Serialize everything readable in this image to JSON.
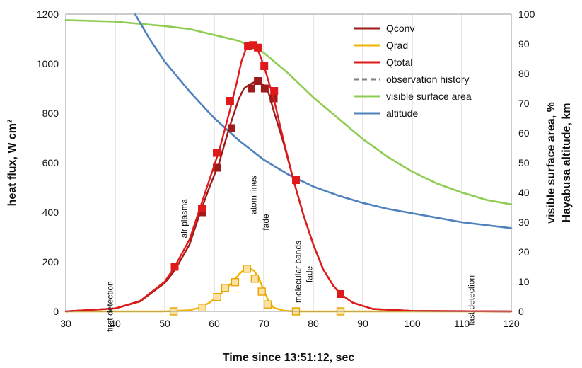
{
  "chart_data": {
    "type": "line",
    "xlabel": "Time since 13:51:12, sec",
    "ylabel_left": "heat flux, W cm²",
    "ylabel_right": "visible surface area, %",
    "ylabel_right2": "Hayabusa altitude, km",
    "xlim": [
      30,
      120
    ],
    "ylim_left": [
      0,
      1200
    ],
    "ylim_right": [
      0,
      100
    ],
    "x_ticks": [
      30,
      40,
      50,
      60,
      70,
      80,
      90,
      100,
      110,
      120
    ],
    "y_left_ticks": [
      0,
      200,
      400,
      600,
      800,
      1000,
      1200
    ],
    "y_right_ticks": [
      0,
      10,
      20,
      30,
      40,
      50,
      60,
      70,
      80,
      90,
      100
    ],
    "grid": "vertical",
    "legend_position": "top-right",
    "series": [
      {
        "name": "Qconv",
        "color": "#9e1b1b",
        "axis": "left",
        "style": "solid",
        "curve": [
          [
            30,
            0
          ],
          [
            40,
            12
          ],
          [
            45,
            40
          ],
          [
            50,
            115
          ],
          [
            52,
            165
          ],
          [
            55,
            270
          ],
          [
            57,
            390
          ],
          [
            59,
            500
          ],
          [
            61,
            600
          ],
          [
            63,
            740
          ],
          [
            65,
            860
          ],
          [
            66,
            900
          ],
          [
            67,
            915
          ],
          [
            68,
            925
          ],
          [
            69,
            925
          ],
          [
            70,
            915
          ],
          [
            71,
            880
          ],
          [
            72,
            810
          ],
          [
            74,
            680
          ],
          [
            76,
            530
          ],
          [
            78,
            390
          ],
          [
            80,
            270
          ],
          [
            82,
            170
          ],
          [
            84,
            105
          ],
          [
            85.5,
            70
          ],
          [
            88,
            35
          ],
          [
            92,
            10
          ],
          [
            100,
            2
          ],
          [
            120,
            0
          ]
        ],
        "markers": [
          [
            57.5,
            400
          ],
          [
            60.5,
            580
          ],
          [
            63.5,
            740
          ],
          [
            67.5,
            900
          ],
          [
            68.8,
            930
          ],
          [
            70.2,
            900
          ],
          [
            72,
            860
          ],
          [
            76.5,
            530
          ]
        ]
      },
      {
        "name": "Qrad",
        "color": "#f0b400",
        "axis": "left",
        "style": "solid",
        "curve": [
          [
            30,
            0
          ],
          [
            50,
            0
          ],
          [
            55,
            5
          ],
          [
            57,
            14
          ],
          [
            59,
            35
          ],
          [
            61,
            65
          ],
          [
            62.5,
            95
          ],
          [
            64,
            125
          ],
          [
            65,
            150
          ],
          [
            66,
            168
          ],
          [
            67,
            175
          ],
          [
            68,
            165
          ],
          [
            69,
            135
          ],
          [
            70,
            85
          ],
          [
            71,
            40
          ],
          [
            72,
            15
          ],
          [
            74,
            3
          ],
          [
            76,
            0
          ],
          [
            120,
            0
          ]
        ],
        "markers": [
          [
            51.8,
            0
          ],
          [
            57.6,
            15
          ],
          [
            60.6,
            58
          ],
          [
            62.2,
            95
          ],
          [
            64.2,
            118
          ],
          [
            66.6,
            172
          ],
          [
            68.2,
            132
          ],
          [
            69.6,
            80
          ],
          [
            70.8,
            28
          ],
          [
            76.5,
            0
          ],
          [
            85.5,
            0
          ]
        ]
      },
      {
        "name": "Qtotal",
        "color": "#e01a1a",
        "axis": "left",
        "style": "solid",
        "curve": [
          [
            30,
            0
          ],
          [
            40,
            12
          ],
          [
            45,
            42
          ],
          [
            50,
            120
          ],
          [
            52,
            180
          ],
          [
            55,
            290
          ],
          [
            57,
            410
          ],
          [
            59,
            530
          ],
          [
            61,
            650
          ],
          [
            63,
            800
          ],
          [
            64.5,
            920
          ],
          [
            65.5,
            1010
          ],
          [
            66.5,
            1065
          ],
          [
            67.5,
            1080
          ],
          [
            68.5,
            1070
          ],
          [
            69.5,
            1020
          ],
          [
            70.5,
            960
          ],
          [
            72,
            860
          ],
          [
            74,
            690
          ],
          [
            76,
            530
          ],
          [
            78,
            390
          ],
          [
            80,
            270
          ],
          [
            82,
            170
          ],
          [
            84,
            105
          ],
          [
            85.5,
            70
          ],
          [
            88,
            35
          ],
          [
            92,
            10
          ],
          [
            100,
            2
          ],
          [
            120,
            0
          ]
        ],
        "markers": [
          [
            52,
            180
          ],
          [
            57.5,
            415
          ],
          [
            60.5,
            640
          ],
          [
            63.2,
            850
          ],
          [
            66.8,
            1070
          ],
          [
            67.8,
            1075
          ],
          [
            68.8,
            1065
          ],
          [
            70.1,
            990
          ],
          [
            72.1,
            890
          ],
          [
            76.5,
            530
          ],
          [
            85.5,
            70
          ]
        ]
      },
      {
        "name": "observation history",
        "color": "#7f7f7f",
        "axis": "left",
        "style": "dashed",
        "curve": []
      },
      {
        "name": "visible surface area",
        "color": "#8fcc52",
        "axis": "right",
        "style": "solid",
        "curve": [
          [
            30,
            98
          ],
          [
            40,
            97.5
          ],
          [
            50,
            96
          ],
          [
            55,
            95
          ],
          [
            60,
            93
          ],
          [
            65,
            91
          ],
          [
            70,
            87
          ],
          [
            75,
            80
          ],
          [
            80,
            72
          ],
          [
            85,
            65
          ],
          [
            90,
            58
          ],
          [
            95,
            52
          ],
          [
            100,
            47
          ],
          [
            105,
            43
          ],
          [
            110,
            40
          ],
          [
            115,
            37.5
          ],
          [
            120,
            36
          ]
        ]
      },
      {
        "name": "altitude",
        "color": "#4e81bd",
        "axis": "right",
        "style": "solid",
        "curve": [
          [
            44,
            100
          ],
          [
            47,
            91.5
          ],
          [
            50,
            84
          ],
          [
            55,
            74
          ],
          [
            60,
            65
          ],
          [
            65,
            57.5
          ],
          [
            70,
            51
          ],
          [
            75,
            46
          ],
          [
            80,
            42
          ],
          [
            85,
            39
          ],
          [
            90,
            36.5
          ],
          [
            95,
            34.5
          ],
          [
            100,
            33
          ],
          [
            105,
            31.5
          ],
          [
            110,
            30
          ],
          [
            115,
            29
          ],
          [
            120,
            28
          ]
        ]
      }
    ],
    "annotations": [
      {
        "text": "first detection",
        "x": 39.5,
        "y": 20
      },
      {
        "text": "air plasma",
        "x": 54.5,
        "y": 375
      },
      {
        "text": "atom lines",
        "x": 68.5,
        "y": 470
      },
      {
        "text": "fade",
        "x": 71,
        "y": 360
      },
      {
        "text": "molecular bands",
        "x": 77.5,
        "y": 160
      },
      {
        "text": "fade",
        "x": 79.8,
        "y": 150
      },
      {
        "text": "last detection",
        "x": 112.5,
        "y": 45
      }
    ]
  }
}
